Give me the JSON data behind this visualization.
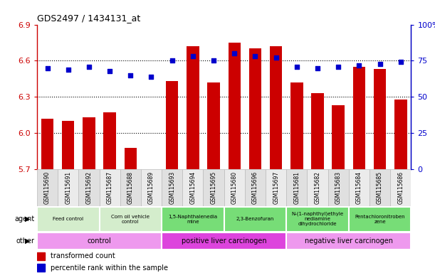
{
  "title": "GDS2497 / 1434131_at",
  "samples": [
    "GSM115690",
    "GSM115691",
    "GSM115692",
    "GSM115687",
    "GSM115688",
    "GSM115689",
    "GSM115693",
    "GSM115694",
    "GSM115695",
    "GSM115680",
    "GSM115696",
    "GSM115697",
    "GSM115681",
    "GSM115682",
    "GSM115683",
    "GSM115684",
    "GSM115685",
    "GSM115686"
  ],
  "bar_values": [
    6.12,
    6.1,
    6.13,
    6.17,
    5.88,
    5.7,
    6.43,
    6.72,
    6.42,
    6.75,
    6.7,
    6.72,
    6.42,
    6.33,
    6.23,
    6.55,
    6.53,
    6.28
  ],
  "percentile_values": [
    70,
    69,
    71,
    68,
    65,
    64,
    75,
    78,
    75,
    80,
    78,
    77,
    71,
    70,
    71,
    72,
    73,
    74
  ],
  "ylim": [
    5.7,
    6.9
  ],
  "ylim_right": [
    0,
    100
  ],
  "yticks": [
    5.7,
    6.0,
    6.3,
    6.6,
    6.9
  ],
  "yticks_right": [
    0,
    25,
    50,
    75,
    100
  ],
  "ytick_labels_right": [
    "0",
    "25",
    "50",
    "75",
    "100%"
  ],
  "bar_color": "#cc0000",
  "dot_color": "#0000cc",
  "agent_groups": [
    {
      "label": "Feed control",
      "start": 0,
      "end": 3,
      "color": "#d4edcc"
    },
    {
      "label": "Corn oil vehicle\ncontrol",
      "start": 3,
      "end": 6,
      "color": "#d4edcc"
    },
    {
      "label": "1,5-Naphthalenedia\nmine",
      "start": 6,
      "end": 9,
      "color": "#77dd77"
    },
    {
      "label": "2,3-Benzofuran",
      "start": 9,
      "end": 12,
      "color": "#77dd77"
    },
    {
      "label": "N-(1-naphthyl)ethyle\nnediamine\ndihydrochloride",
      "start": 12,
      "end": 15,
      "color": "#77dd77"
    },
    {
      "label": "Pentachloronitroben\nzene",
      "start": 15,
      "end": 18,
      "color": "#77dd77"
    }
  ],
  "other_groups": [
    {
      "label": "control",
      "start": 0,
      "end": 6,
      "color": "#ee99ee"
    },
    {
      "label": "positive liver carcinogen",
      "start": 6,
      "end": 12,
      "color": "#dd44dd"
    },
    {
      "label": "negative liver carcinogen",
      "start": 12,
      "end": 18,
      "color": "#ee99ee"
    }
  ],
  "legend_items": [
    {
      "label": "transformed count",
      "color": "#cc0000"
    },
    {
      "label": "percentile rank within the sample",
      "color": "#0000cc"
    }
  ],
  "chart_bg": "#ffffff",
  "tick_color_left": "#cc0000",
  "tick_color_right": "#0000cc",
  "grid_yticks": [
    6.0,
    6.3,
    6.6
  ]
}
